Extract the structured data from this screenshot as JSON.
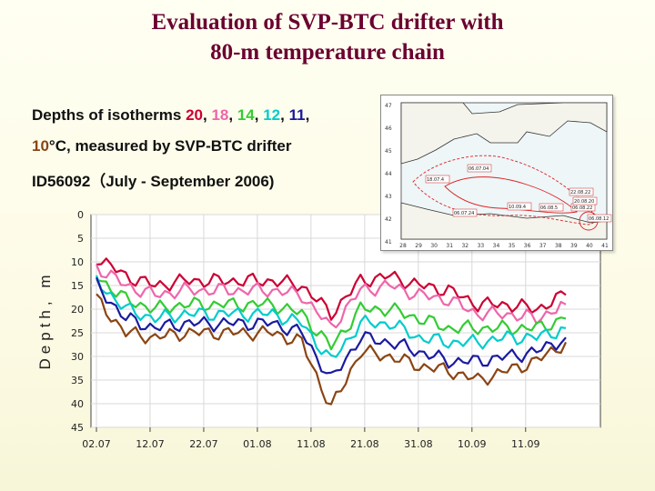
{
  "title_line1": "Evaluation of SVP-BTC drifter with",
  "title_line2": "80-m temperature chain",
  "caption": {
    "line1_prefix": "Depths of isotherms ",
    "line1_values": [
      "20",
      "18",
      "14",
      "12",
      "11"
    ],
    "line2_value": "10",
    "line2_suffix": "°C, measured by SVP-BTC drifter",
    "line3": "ID56092（July - September 2006)"
  },
  "colors": {
    "title": "#6b0030",
    "iso20": "#cc0033",
    "iso18": "#ee66aa",
    "iso14": "#33cc33",
    "iso12": "#00cccc",
    "iso11": "#1a1aa0",
    "iso10": "#8b4513"
  },
  "map": {
    "lat_labels": [
      "47",
      "46",
      "45",
      "44",
      "43",
      "42",
      "41"
    ],
    "lon_labels": [
      "28",
      "29",
      "30",
      "31",
      "32",
      "33",
      "34",
      "35",
      "36",
      "37",
      "38",
      "39",
      "40",
      "41"
    ],
    "date_labels": [
      "06.07.04",
      "18.07.4",
      "10.09.4",
      "06.08.5",
      "22.08.22",
      "06.08.22",
      "06.07.24",
      "06.08.12",
      "20.08.20"
    ]
  },
  "chart_data": {
    "type": "line",
    "title": "",
    "xlabel": "",
    "ylabel": "Depth, m",
    "y_inverted": true,
    "ylim": [
      0,
      45
    ],
    "y_ticks": [
      "0",
      "5",
      "10",
      "15",
      "20",
      "25",
      "30",
      "35",
      "40",
      "45"
    ],
    "x_ticks": [
      "02.07",
      "12.07",
      "22.07",
      "01.08",
      "11.08",
      "21.08",
      "31.08",
      "10.09",
      "11.09"
    ],
    "x": [
      "02.07",
      "07.07",
      "12.07",
      "17.07",
      "22.07",
      "27.07",
      "01.08",
      "06.08",
      "11.08",
      "16.08",
      "21.08",
      "26.08",
      "31.08",
      "05.09",
      "10.09",
      "15.09",
      "20.09"
    ],
    "series": [
      {
        "name": "20",
        "color_key": "iso20",
        "values": [
          9,
          13,
          15,
          14,
          14,
          14,
          14,
          15,
          21,
          14,
          13,
          15,
          16,
          19,
          19,
          20,
          17
        ]
      },
      {
        "name": "18",
        "color_key": "iso18",
        "values": [
          11,
          15,
          17,
          16,
          16,
          16,
          16,
          17,
          24,
          16,
          15,
          17,
          18,
          21,
          21,
          22,
          19
        ]
      },
      {
        "name": "14",
        "color_key": "iso14",
        "values": [
          13,
          18,
          20,
          19,
          19,
          19,
          19,
          21,
          28,
          20,
          20,
          22,
          24,
          24,
          24,
          24,
          22
        ]
      },
      {
        "name": "12",
        "color_key": "iso12",
        "values": [
          14,
          20,
          22,
          21,
          21,
          21,
          21,
          23,
          31,
          23,
          23,
          26,
          27,
          27,
          26,
          26,
          24
        ]
      },
      {
        "name": "11",
        "color_key": "iso11",
        "values": [
          15,
          22,
          24,
          23,
          23,
          23,
          23,
          25,
          35,
          26,
          27,
          29,
          31,
          31,
          30,
          29,
          26
        ]
      },
      {
        "name": "10",
        "color_key": "iso10",
        "values": [
          18,
          25,
          26,
          25,
          25,
          25,
          25,
          27,
          41,
          29,
          30,
          32,
          33,
          35,
          33,
          31,
          27
        ]
      }
    ]
  }
}
